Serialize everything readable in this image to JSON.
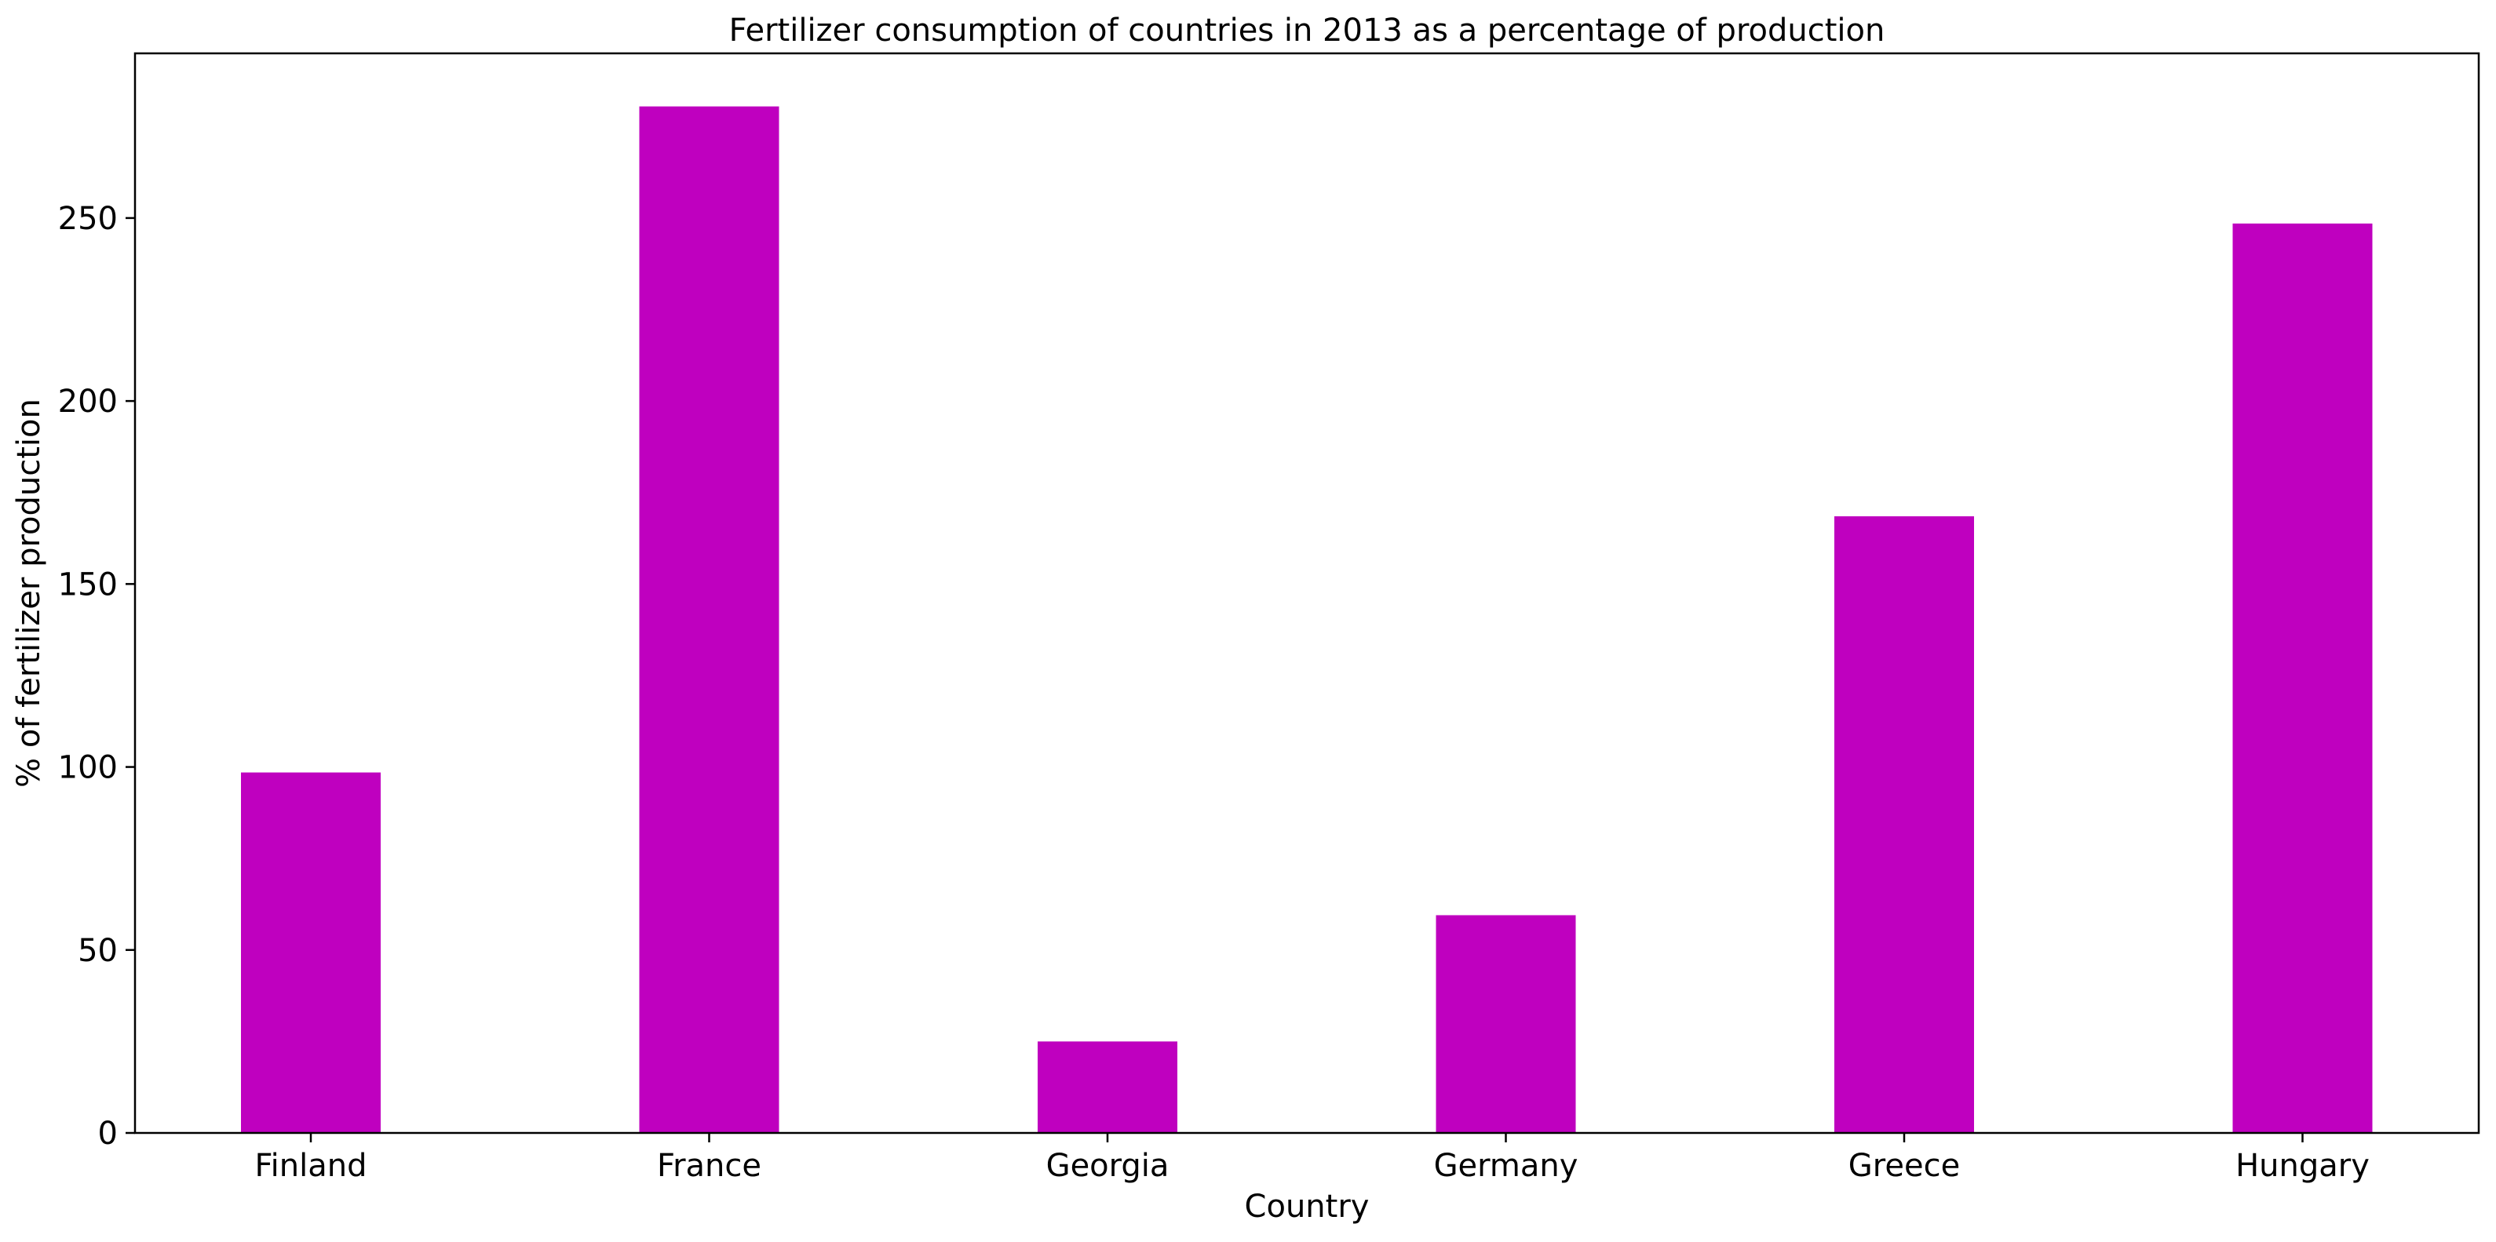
{
  "chart_data": {
    "type": "bar",
    "title": "Fertilizer consumption of countries in 2013 as a percentage of production",
    "xlabel": "Country",
    "ylabel": "% of fertilizer production",
    "categories": [
      "Finland",
      "France",
      "Georgia",
      "Germany",
      "Greece",
      "Hungary"
    ],
    "values": [
      98.5,
      280.5,
      25,
      59.5,
      168.5,
      248.5
    ],
    "ylim": [
      0,
      295
    ],
    "yticks": [
      0,
      50,
      100,
      150,
      200,
      250
    ],
    "bar_color": "#bf00bf",
    "grid": false,
    "legend": "none"
  }
}
